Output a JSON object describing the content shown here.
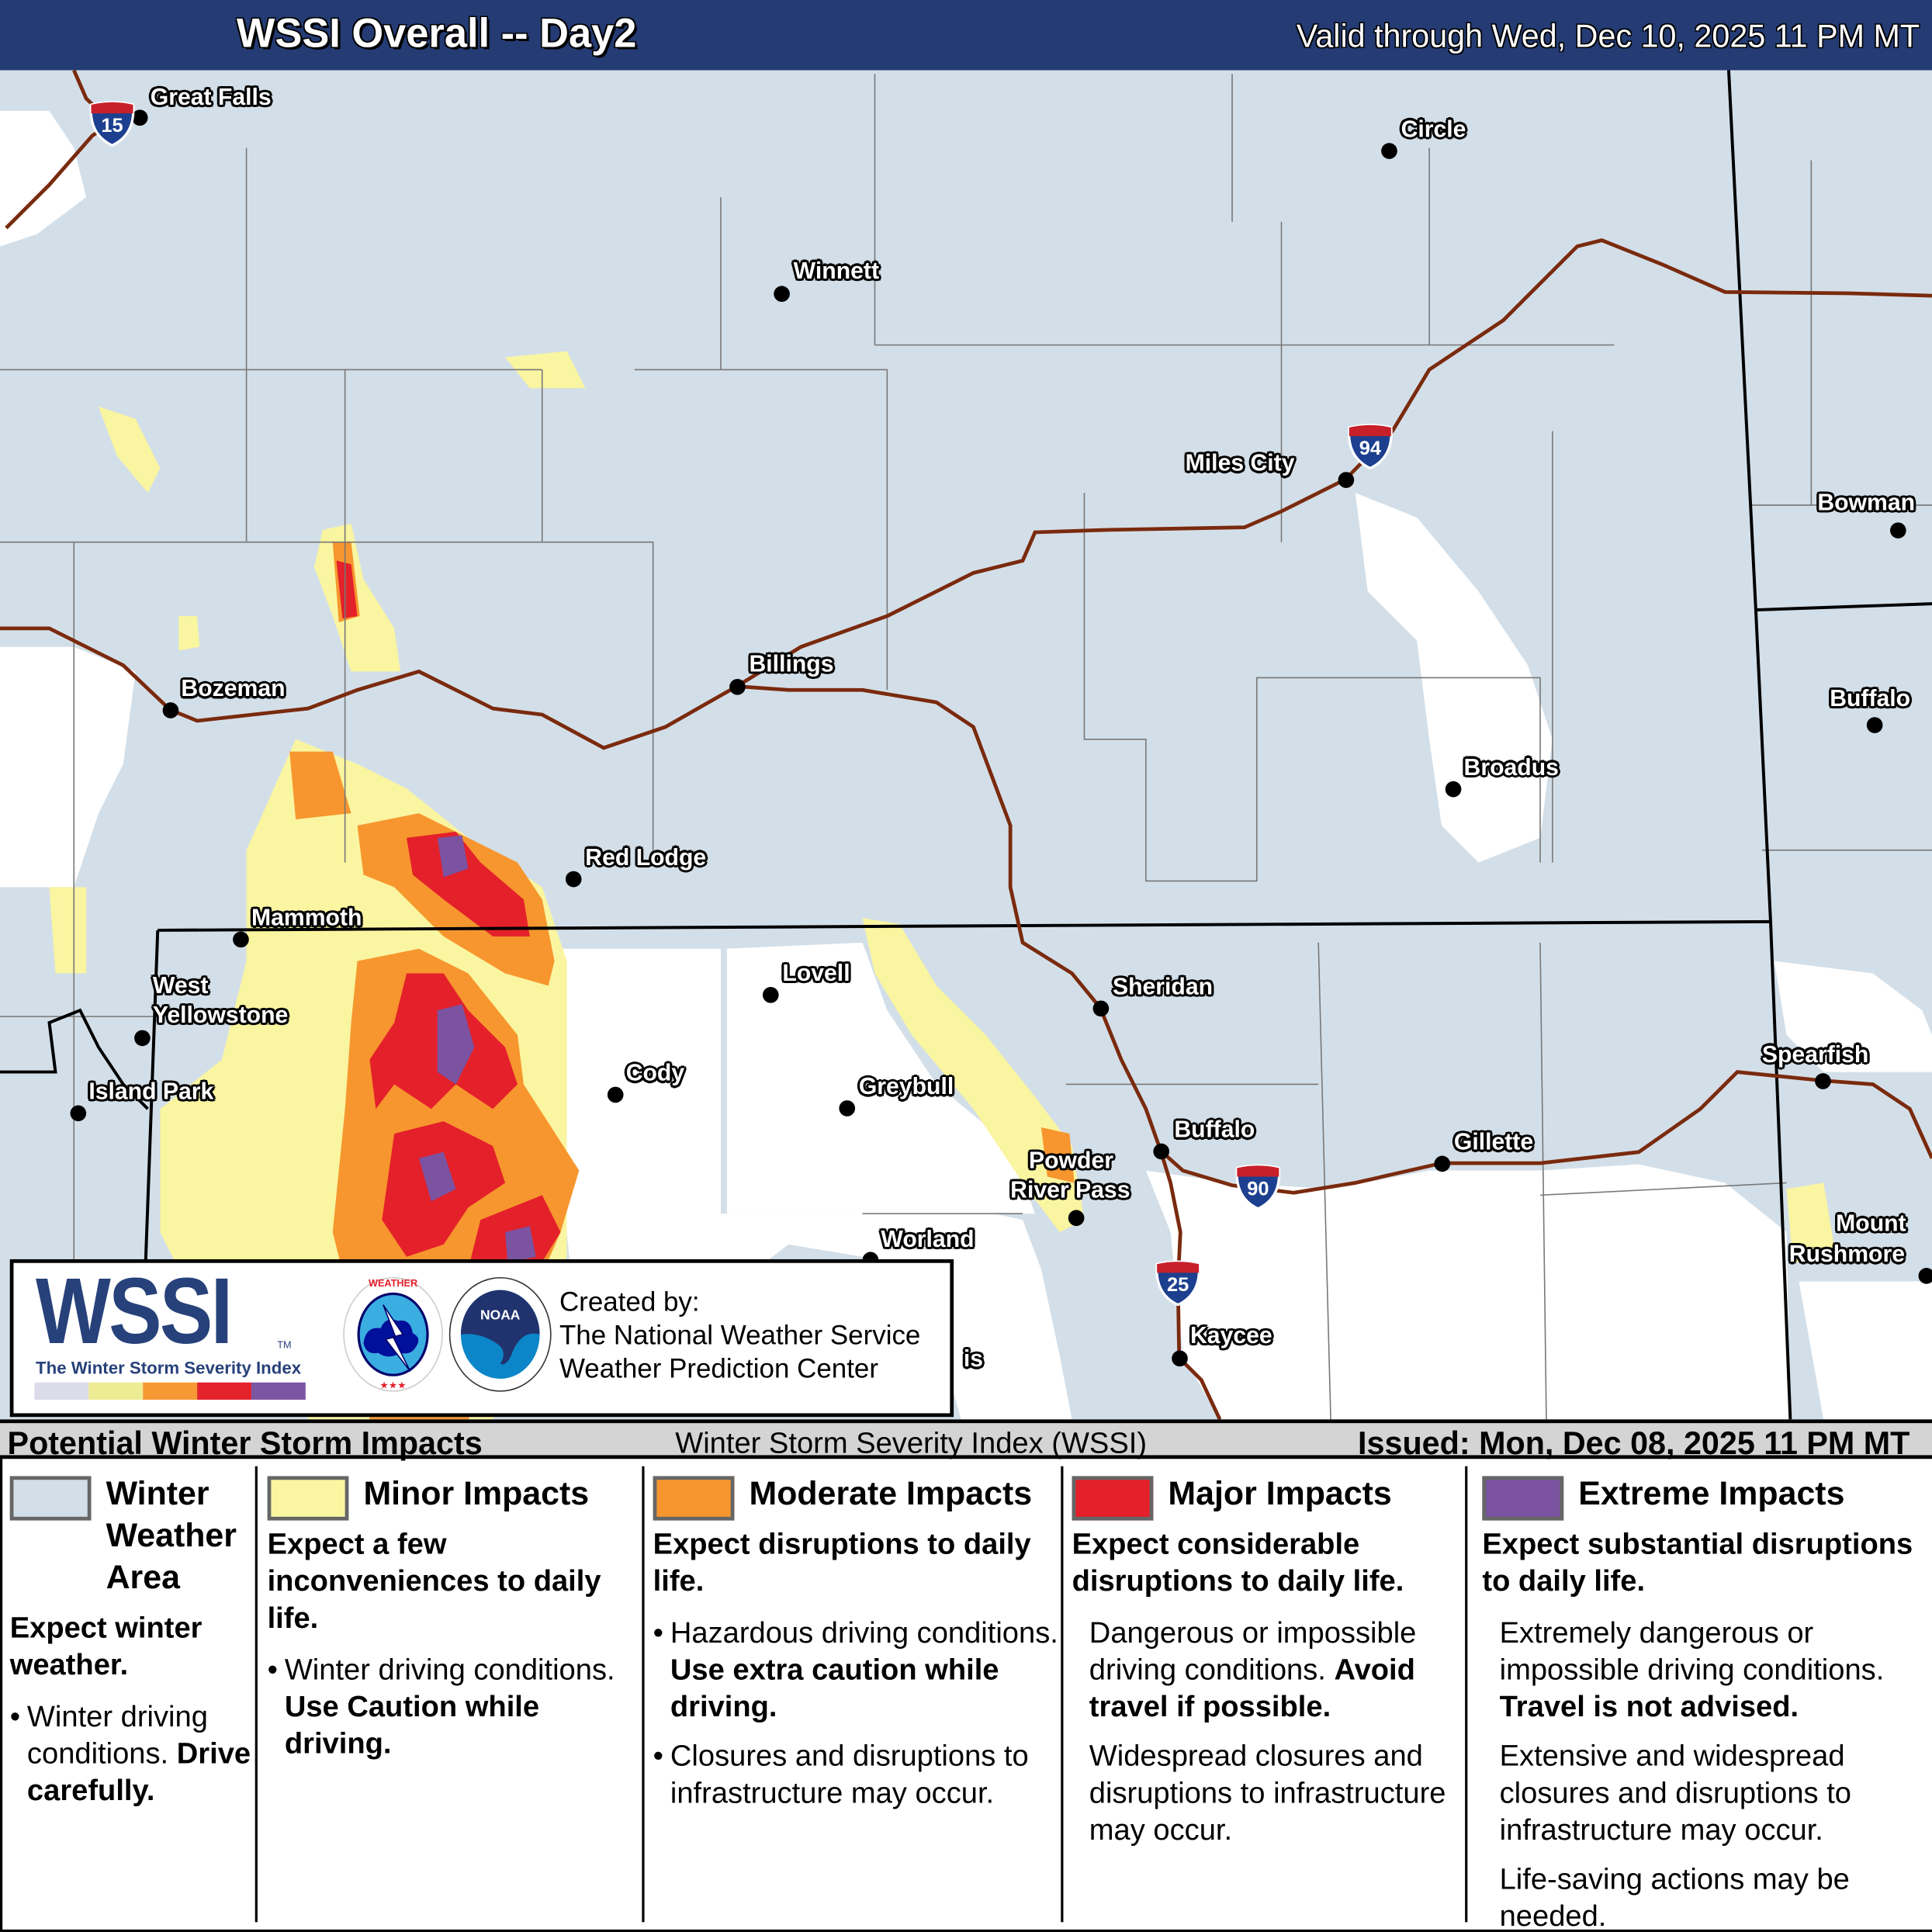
{
  "header": {
    "title": "WSSI Overall -- Day2",
    "valid": "Valid through Wed, Dec 10, 2025 11 PM MT"
  },
  "map": {
    "colors": {
      "background": "#d3dfe8",
      "no_winter": "#ffffff",
      "minor": "#faf5a0",
      "moderate": "#f7962e",
      "major": "#e4202a",
      "extreme": "#7b53a1",
      "interstate": "#7a2a0e"
    },
    "cities": [
      "Great Falls",
      "Circle",
      "Winnett",
      "Miles City",
      "Bowman",
      "Buffalo",
      "Billings",
      "Bozeman",
      "Broadus",
      "Red Lodge",
      "Mammoth",
      "West",
      "Yellowstone",
      "Island Park",
      "Lovell",
      "Sheridan",
      "Cody",
      "Greybull",
      "Spearfish",
      "Buffalo",
      "Gillette",
      "Powder",
      "River Pass",
      "Worland",
      "Mount",
      "Rushmore",
      "Kaycee",
      "is"
    ],
    "interstates": [
      "15",
      "94",
      "90",
      "25"
    ]
  },
  "logo": {
    "wordmark": "WSSI",
    "tm": "TM",
    "subtitle": "The Winter Storm Severity Index",
    "nws_seal": "NATIONAL WEATHER SERVICE",
    "noaa_seal": "NOAA",
    "credit_1": "Created by:",
    "credit_2": "The National Weather Service",
    "credit_3": "Weather Prediction Center"
  },
  "legend_bar": {
    "left": "Potential Winter Storm Impacts",
    "middle": "Winter Storm Severity Index (WSSI)",
    "right": "Issued: Mon, Dec 08, 2025 11 PM MT"
  },
  "legend": [
    {
      "color": "#d3dfe8",
      "title": "Winter Weather Area",
      "headline": "Expect winter weather.",
      "items": [
        {
          "bullet": true,
          "text": "Winter driving conditions.",
          "bold": "Drive carefully."
        }
      ]
    },
    {
      "color": "#faf5a0",
      "title": "Minor Impacts",
      "headline": "Expect a few inconveniences to daily life.",
      "items": [
        {
          "bullet": true,
          "text": "Winter driving conditions.",
          "bold": "Use Caution while driving."
        }
      ]
    },
    {
      "color": "#f7962e",
      "title": "Moderate Impacts",
      "headline": "Expect disruptions to daily life.",
      "items": [
        {
          "bullet": true,
          "text": "Hazardous driving conditions.",
          "bold": "Use extra caution while driving."
        },
        {
          "bullet": true,
          "text": "Closures and disruptions to infrastructure may occur.",
          "bold": ""
        }
      ]
    },
    {
      "color": "#e4202a",
      "title": "Major Impacts",
      "headline": "Expect considerable disruptions to daily life.",
      "items": [
        {
          "bullet": false,
          "text": "Dangerous or impossible driving conditions.",
          "bold": "Avoid travel if possible."
        },
        {
          "bullet": false,
          "text": "Widespread closures and disruptions to infrastructure may occur.",
          "bold": ""
        }
      ]
    },
    {
      "color": "#7b53a1",
      "title": "Extreme Impacts",
      "headline": "Expect substantial disruptions to daily life.",
      "items": [
        {
          "bullet": false,
          "text": "Extremely dangerous or impossible driving conditions.",
          "bold": "Travel is not advised."
        },
        {
          "bullet": false,
          "text": "Extensive and widespread closures and disruptions to infrastructure may occur.",
          "bold": ""
        },
        {
          "bullet": false,
          "text": "Life-saving actions may be needed.",
          "bold": ""
        }
      ]
    }
  ]
}
